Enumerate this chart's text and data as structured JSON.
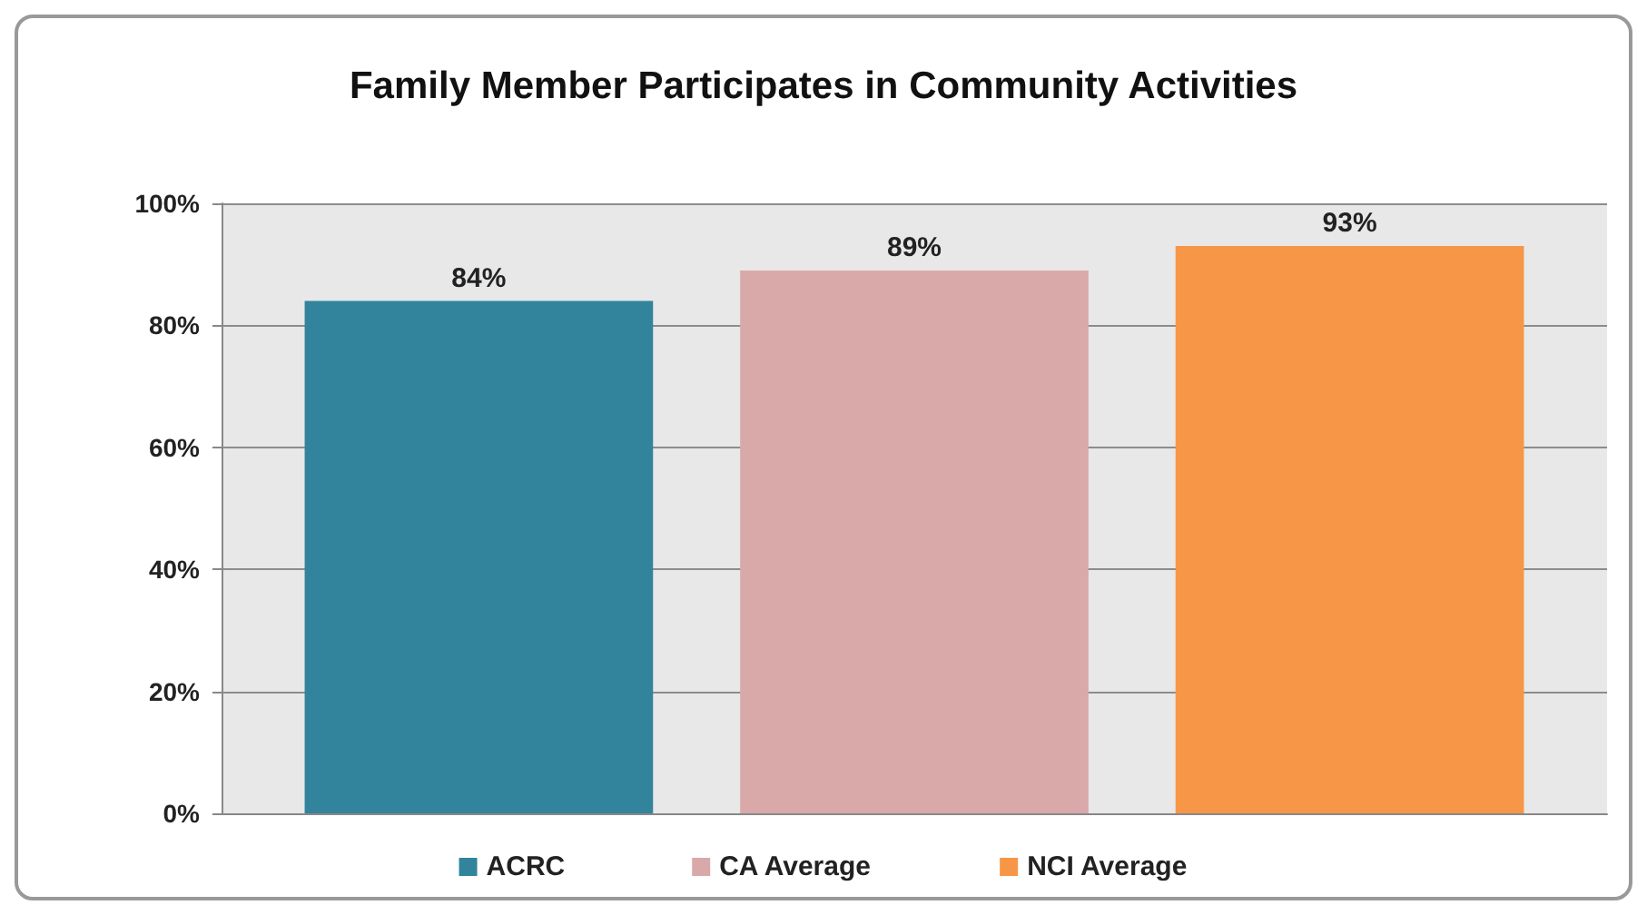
{
  "chart_data": {
    "type": "bar",
    "title": "Family Member Participates in Community Activities",
    "categories": [
      null
    ],
    "series": [
      {
        "name": "ACRC",
        "color": "#31849b",
        "values": [
          84
        ],
        "value_labels": [
          "84%"
        ]
      },
      {
        "name": "CA Average",
        "color": "#d9a9aa",
        "values": [
          89
        ],
        "value_labels": [
          "89%"
        ]
      },
      {
        "name": "NCI Average",
        "color": "#f79646",
        "values": [
          93
        ],
        "value_labels": [
          "93%"
        ]
      }
    ],
    "ylim": [
      0,
      100
    ],
    "yticks": [
      {
        "value": 0,
        "label": "0%"
      },
      {
        "value": 20,
        "label": "20%"
      },
      {
        "value": 40,
        "label": "40%"
      },
      {
        "value": 60,
        "label": "60%"
      },
      {
        "value": 80,
        "label": "80%"
      },
      {
        "value": 100,
        "label": "100%"
      }
    ],
    "grid": "y",
    "legend": "bottom"
  }
}
